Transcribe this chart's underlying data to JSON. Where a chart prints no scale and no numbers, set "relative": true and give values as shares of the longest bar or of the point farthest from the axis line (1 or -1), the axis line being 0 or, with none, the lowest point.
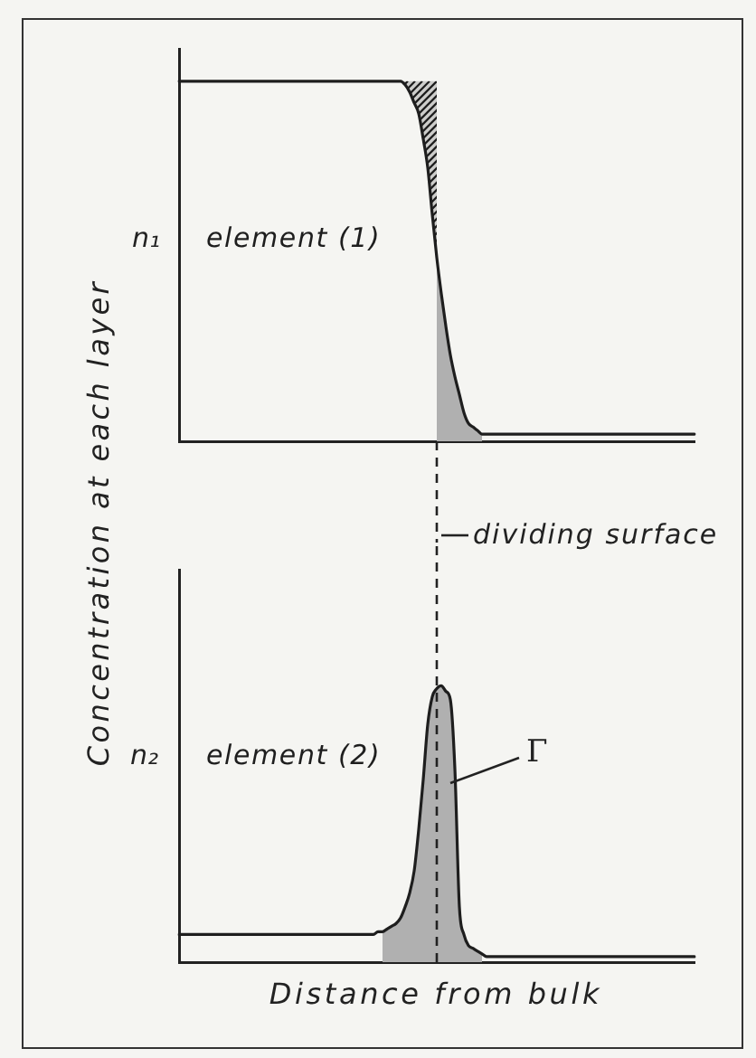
{
  "chart_data": [
    {
      "type": "line",
      "ylabel": "Concentration at each layer",
      "relative": true,
      "tick_labels": false,
      "categories": [
        null,
        null,
        null,
        null,
        null,
        null,
        null,
        null,
        null,
        null,
        null,
        null,
        null,
        null,
        null,
        null,
        null,
        null,
        null,
        null,
        null,
        null,
        null,
        null,
        null,
        null,
        null,
        null,
        null,
        null,
        null,
        null,
        null,
        null,
        null,
        null,
        null,
        null,
        null,
        null,
        null,
        null,
        null,
        null,
        null,
        null,
        null,
        null,
        null,
        null,
        null,
        null,
        null,
        null,
        null,
        null,
        null,
        null,
        null,
        null,
        null,
        null,
        null,
        null,
        null,
        null,
        null,
        null,
        null,
        null,
        null,
        null,
        null,
        null,
        null,
        null,
        null,
        null,
        null,
        null,
        null,
        null,
        null,
        null,
        null,
        null,
        null,
        null,
        null,
        null,
        null,
        null,
        null,
        null,
        null,
        null,
        null,
        null,
        null,
        null,
        null,
        null,
        null,
        null,
        null,
        null,
        null,
        null,
        null,
        null,
        null,
        null,
        null,
        null,
        null
      ],
      "series": [
        {
          "name": "element (1)",
          "color": "#1e1e1e",
          "values": [
            1,
            1,
            1,
            1,
            1,
            1,
            1,
            1,
            1,
            1,
            1,
            1,
            1,
            1,
            1,
            1,
            1,
            1,
            1,
            1,
            1,
            1,
            1,
            1,
            1,
            1,
            1,
            1,
            1,
            1,
            1,
            1,
            1,
            1,
            1,
            1,
            1,
            1,
            1,
            1,
            1,
            1,
            1,
            1,
            1,
            1,
            1,
            1,
            1,
            1,
            0.99,
            0.97,
            0.94,
            0.91,
            0.84,
            0.76,
            0.63,
            0.51,
            0.41,
            0.32,
            0.24,
            0.18,
            0.13,
            0.08,
            0.05,
            0.04,
            0.03,
            0.02,
            0.02,
            0.02,
            0.02,
            0.02,
            0.02,
            0.02,
            0.02,
            0.02,
            0.02,
            0.02,
            0.02,
            0.02,
            0.02,
            0.02,
            0.02,
            0.02,
            0.02,
            0.02,
            0.02,
            0.02,
            0.02,
            0.02,
            0.02,
            0.02,
            0.02,
            0.02,
            0.02,
            0.02,
            0.02,
            0.02,
            0.02,
            0.02,
            0.02,
            0.02,
            0.02,
            0.02,
            0.02,
            0.02,
            0.02,
            0.02,
            0.02,
            0.02,
            0.02,
            0.02,
            0.02,
            0.02,
            0.02
          ],
          "lower": [
            null,
            null,
            null,
            null,
            null,
            null,
            null,
            null,
            null,
            null,
            null,
            null,
            null,
            null,
            null,
            null,
            null,
            null,
            null,
            null,
            null,
            null,
            null,
            null,
            null,
            null,
            null,
            null,
            null,
            null,
            null,
            null,
            null,
            null,
            null,
            null,
            null,
            null,
            null,
            null,
            null,
            null,
            null,
            null,
            null,
            null,
            null,
            null,
            null,
            1,
            0.99,
            0.97,
            0.94,
            0.91,
            0.84,
            0.76,
            0.63,
            0.51,
            null,
            null,
            null,
            null,
            null,
            null,
            null,
            null,
            null,
            null,
            null,
            null,
            null,
            null,
            null,
            null,
            null,
            null,
            null,
            null,
            null,
            null,
            null,
            null,
            null,
            null,
            null,
            null,
            null,
            null,
            null,
            null,
            null,
            null,
            null,
            null,
            null,
            null,
            null,
            null,
            null,
            null,
            null,
            null,
            null,
            null,
            null,
            null,
            null,
            null,
            null,
            null,
            null,
            null,
            null,
            null,
            null
          ],
          "upper": [
            null,
            null,
            null,
            null,
            null,
            null,
            null,
            null,
            null,
            null,
            null,
            null,
            null,
            null,
            null,
            null,
            null,
            null,
            null,
            null,
            null,
            null,
            null,
            null,
            null,
            null,
            null,
            null,
            null,
            null,
            null,
            null,
            null,
            null,
            null,
            null,
            null,
            null,
            null,
            null,
            null,
            null,
            null,
            null,
            null,
            null,
            null,
            null,
            null,
            1,
            1,
            1,
            1,
            1,
            1,
            1,
            1,
            1,
            null,
            null,
            null,
            null,
            null,
            null,
            null,
            null,
            null,
            null,
            null,
            null,
            null,
            null,
            null,
            null,
            null,
            null,
            null,
            null,
            null,
            null,
            null,
            null,
            null,
            null,
            null,
            null,
            null,
            null,
            null,
            null,
            null,
            null,
            null,
            null,
            null,
            null,
            null,
            null,
            null,
            null,
            null,
            null,
            null,
            null,
            null,
            null,
            null,
            null,
            null,
            null,
            null,
            null,
            null,
            null,
            null
          ]
        },
        {
          "type": "area",
          "color": "#b0b0b0",
          "values": [
            null,
            null,
            null,
            null,
            null,
            null,
            null,
            null,
            null,
            null,
            null,
            null,
            null,
            null,
            null,
            null,
            null,
            null,
            null,
            null,
            null,
            null,
            null,
            null,
            null,
            null,
            null,
            null,
            null,
            null,
            null,
            null,
            null,
            null,
            null,
            null,
            null,
            null,
            null,
            null,
            null,
            null,
            null,
            null,
            null,
            null,
            null,
            null,
            null,
            null,
            null,
            null,
            null,
            null,
            null,
            null,
            null,
            0.51,
            0.41,
            0.32,
            0.24,
            0.18,
            0.13,
            0.08,
            0.05,
            0.04,
            0.03,
            0.02,
            null,
            null,
            null,
            null,
            null,
            null,
            null,
            null,
            null,
            null,
            null,
            null,
            null,
            null,
            null,
            null,
            null,
            null,
            null,
            null,
            null,
            null,
            null,
            null,
            null,
            null,
            null,
            null,
            null,
            null,
            null,
            null,
            null,
            null,
            null,
            null,
            null,
            null,
            null,
            null,
            null,
            null,
            null,
            null,
            null,
            null,
            null
          ]
        }
      ],
      "annotations": [
        "n₁"
      ]
    },
    {
      "type": "line",
      "xlabel": "Distance from bulk",
      "relative": true,
      "tick_labels": false,
      "categories": [
        null,
        null,
        null,
        null,
        null,
        null,
        null,
        null,
        null,
        null,
        null,
        null,
        null,
        null,
        null,
        null,
        null,
        null,
        null,
        null,
        null,
        null,
        null,
        null,
        null,
        null,
        null,
        null,
        null,
        null,
        null,
        null,
        null,
        null,
        null,
        null,
        null,
        null,
        null,
        null,
        null,
        null,
        null,
        null,
        null,
        null,
        null,
        null,
        null,
        null,
        null,
        null,
        null,
        null,
        null,
        null,
        null,
        null,
        null,
        null,
        null,
        null,
        null,
        null,
        null,
        null,
        null,
        null,
        null,
        null,
        null,
        null,
        null,
        null,
        null,
        null,
        null,
        null,
        null,
        null,
        null,
        null,
        null,
        null,
        null,
        null,
        null,
        null,
        null,
        null,
        null,
        null,
        null,
        null,
        null,
        null,
        null,
        null,
        null,
        null,
        null,
        null,
        null,
        null,
        null,
        null,
        null,
        null,
        null,
        null,
        null,
        null,
        null,
        null,
        null
      ],
      "series": [
        {
          "name": "element (2)",
          "color": "#1e1e1e",
          "values": [
            0.1,
            0.1,
            0.1,
            0.1,
            0.1,
            0.1,
            0.1,
            0.1,
            0.1,
            0.1,
            0.1,
            0.1,
            0.1,
            0.1,
            0.1,
            0.1,
            0.1,
            0.1,
            0.1,
            0.1,
            0.1,
            0.1,
            0.1,
            0.1,
            0.1,
            0.1,
            0.1,
            0.1,
            0.1,
            0.1,
            0.1,
            0.1,
            0.1,
            0.1,
            0.1,
            0.1,
            0.1,
            0.1,
            0.1,
            0.1,
            0.1,
            0.1,
            0.1,
            0.1,
            0.11,
            0.11,
            0.12,
            0.13,
            0.14,
            0.16,
            0.2,
            0.25,
            0.33,
            0.48,
            0.66,
            0.86,
            0.96,
            0.99,
            1,
            0.98,
            0.95,
            0.7,
            0.2,
            0.1,
            0.06,
            0.05,
            0.04,
            0.03,
            0.02,
            0.02,
            0.02,
            0.02,
            0.02,
            0.02,
            0.02,
            0.02,
            0.02,
            0.02,
            0.02,
            0.02,
            0.02,
            0.02,
            0.02,
            0.02,
            0.02,
            0.02,
            0.02,
            0.02,
            0.02,
            0.02,
            0.02,
            0.02,
            0.02,
            0.02,
            0.02,
            0.02,
            0.02,
            0.02,
            0.02,
            0.02,
            0.02,
            0.02,
            0.02,
            0.02,
            0.02,
            0.02,
            0.02,
            0.02,
            0.02,
            0.02,
            0.02,
            0.02,
            0.02,
            0.02,
            0.02
          ]
        },
        {
          "type": "area",
          "color": "#b0b0b0",
          "values": [
            null,
            null,
            null,
            null,
            null,
            null,
            null,
            null,
            null,
            null,
            null,
            null,
            null,
            null,
            null,
            null,
            null,
            null,
            null,
            null,
            null,
            null,
            null,
            null,
            null,
            null,
            null,
            null,
            null,
            null,
            null,
            null,
            null,
            null,
            null,
            null,
            null,
            null,
            null,
            null,
            null,
            null,
            null,
            null,
            null,
            0.11,
            0.12,
            0.13,
            0.14,
            0.16,
            0.2,
            0.25,
            0.33,
            0.48,
            0.66,
            0.86,
            0.96,
            0.99,
            1,
            0.98,
            0.95,
            0.7,
            0.2,
            0.1,
            0.06,
            0.05,
            0.04,
            0.03,
            null,
            null,
            null,
            null,
            null,
            null,
            null,
            null,
            null,
            null,
            null,
            null,
            null,
            null,
            null,
            null,
            null,
            null,
            null,
            null,
            null,
            null,
            null,
            null,
            null,
            null,
            null,
            null,
            null,
            null,
            null,
            null,
            null,
            null,
            null,
            null,
            null,
            null,
            null,
            null,
            null,
            null,
            null,
            null,
            null,
            null,
            null
          ]
        }
      ],
      "annotations": [
        "n₂",
        "Γ"
      ],
      "ref_lines": [
        {
          "axis": "x",
          "label": "dividing surface",
          "line_style": "dashed"
        }
      ]
    }
  ]
}
